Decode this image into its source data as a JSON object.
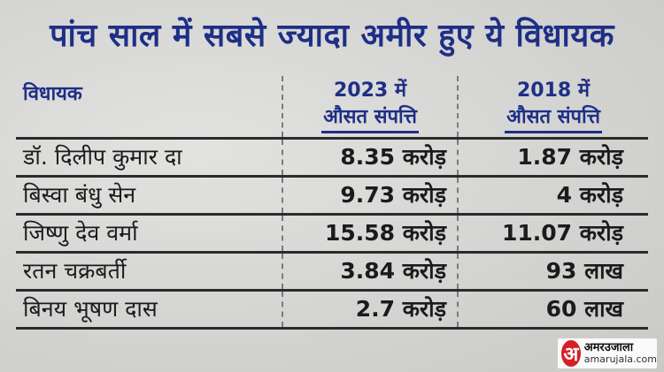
{
  "title": "पांच साल में सबसे ज्यादा अमीर हुए ये विधायक",
  "table": {
    "headers": {
      "col1": "विधायक",
      "col2_line1": "2023 में",
      "col2_line2": "औसत संपत्ति",
      "col3_line1": "2018 में",
      "col3_line2": "औसत संपत्ति"
    },
    "rows": [
      {
        "name": "डॉ. दिलीप कुमार दा",
        "v2023": "8.35 करोड़",
        "v2018": "1.87 करोड़"
      },
      {
        "name": "बिस्वा बंधु सेन",
        "v2023": "9.73 करोड़",
        "v2018": "4 करोड़"
      },
      {
        "name": "जिष्णु देव वर्मा",
        "v2023": "15.58 करोड़",
        "v2018": "11.07 करोड़"
      },
      {
        "name": "रतन चक्रबर्ती",
        "v2023": "3.84 करोड़",
        "v2018": "93 लाख"
      },
      {
        "name": "बिनय भूषण दास",
        "v2023": "2.7 करोड़",
        "v2018": "60 लाख"
      }
    ]
  },
  "logo": {
    "mark": "अ",
    "name": "अमरउजाला",
    "domain": "amarujala.com"
  },
  "colors": {
    "heading": "#1e2f86",
    "brand": "#d52027"
  }
}
